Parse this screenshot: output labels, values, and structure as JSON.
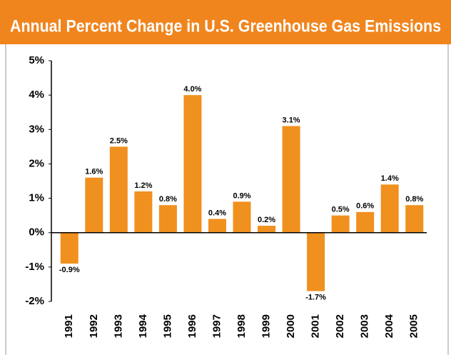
{
  "chart_data": {
    "type": "bar",
    "title": "Annual Percent Change in U.S. Greenhouse Gas Emissions",
    "categories": [
      "1991",
      "1992",
      "1993",
      "1994",
      "1995",
      "1996",
      "1997",
      "1998",
      "1999",
      "2000",
      "2001",
      "2002",
      "2003",
      "2004",
      "2005"
    ],
    "values": [
      -0.9,
      1.6,
      2.5,
      1.2,
      0.8,
      4.0,
      0.4,
      0.9,
      0.2,
      3.1,
      -1.7,
      0.5,
      0.6,
      1.4,
      0.8
    ],
    "value_labels": [
      "-0.9%",
      "1.6%",
      "2.5%",
      "1.2%",
      "0.8%",
      "4.0%",
      "0.4%",
      "0.9%",
      "0.2%",
      "3.1%",
      "-1.7%",
      "0.5%",
      "0.6%",
      "1.4%",
      "0.8%"
    ],
    "color": "#f0901e",
    "ylim": [
      -2,
      5
    ],
    "yticks": [
      {
        "value": -2,
        "label": "-2%"
      },
      {
        "value": -1,
        "label": "-1%"
      },
      {
        "value": 0,
        "label": "0%"
      },
      {
        "value": 1,
        "label": "1%"
      },
      {
        "value": 2,
        "label": "2%"
      },
      {
        "value": 3,
        "label": "3%"
      },
      {
        "value": 4,
        "label": "4%"
      },
      {
        "value": 5,
        "label": "5%"
      }
    ],
    "grid": false
  }
}
